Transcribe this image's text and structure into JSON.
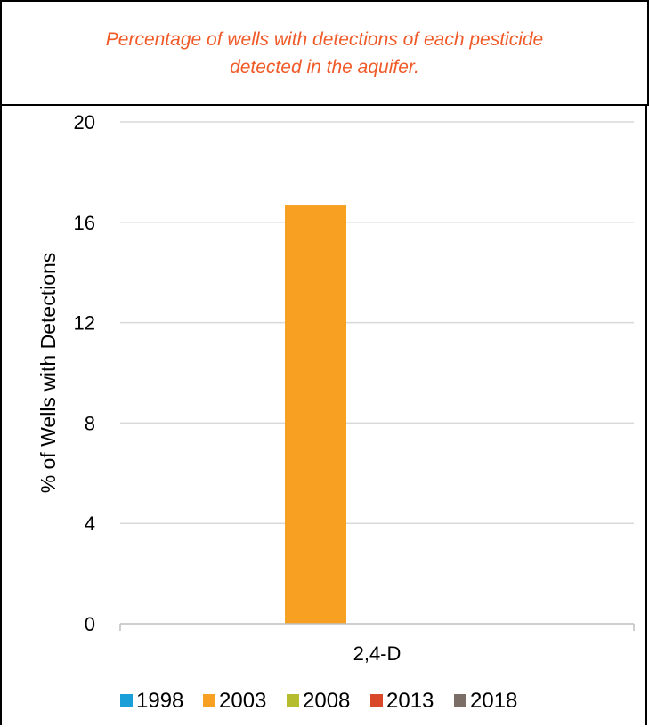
{
  "chart_data": {
    "type": "bar",
    "title": "Percentage of wells with detections of each pesticide detected in the aquifer.",
    "ylabel": "% of Wells with Detections",
    "xlabel": "",
    "categories": [
      "2,4-D"
    ],
    "ylim": [
      0,
      20
    ],
    "yticks": [
      0,
      4,
      8,
      12,
      16,
      20
    ],
    "grid": true,
    "legend_placement": "bottom",
    "series": [
      {
        "name": "1998",
        "color": "#1a9fd9",
        "values": [
          0
        ]
      },
      {
        "name": "2003",
        "color": "#f7a021",
        "values": [
          16.7
        ]
      },
      {
        "name": "2008",
        "color": "#b5bd2f",
        "values": [
          0
        ]
      },
      {
        "name": "2013",
        "color": "#d9482b",
        "values": [
          0
        ]
      },
      {
        "name": "2018",
        "color": "#7a6e66",
        "values": [
          0
        ]
      }
    ]
  }
}
